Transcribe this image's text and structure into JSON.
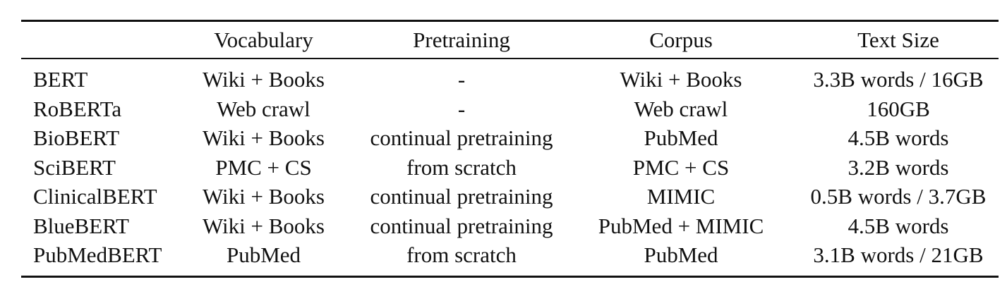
{
  "table": {
    "columns": [
      "",
      "Vocabulary",
      "Pretraining",
      "Corpus",
      "Text Size"
    ],
    "rows": [
      [
        "BERT",
        "Wiki + Books",
        "-",
        "Wiki + Books",
        "3.3B words / 16GB"
      ],
      [
        "RoBERTa",
        "Web crawl",
        "-",
        "Web crawl",
        "160GB"
      ],
      [
        "BioBERT",
        "Wiki + Books",
        "continual pretraining",
        "PubMed",
        "4.5B words"
      ],
      [
        "SciBERT",
        "PMC + CS",
        "from scratch",
        "PMC + CS",
        "3.2B words"
      ],
      [
        "ClinicalBERT",
        "Wiki + Books",
        "continual pretraining",
        "MIMIC",
        "0.5B words / 3.7GB"
      ],
      [
        "BlueBERT",
        "Wiki + Books",
        "continual pretraining",
        "PubMed + MIMIC",
        "4.5B words"
      ],
      [
        "PubMedBERT",
        "PubMed",
        "from scratch",
        "PubMed",
        "3.1B words / 21GB"
      ]
    ]
  }
}
